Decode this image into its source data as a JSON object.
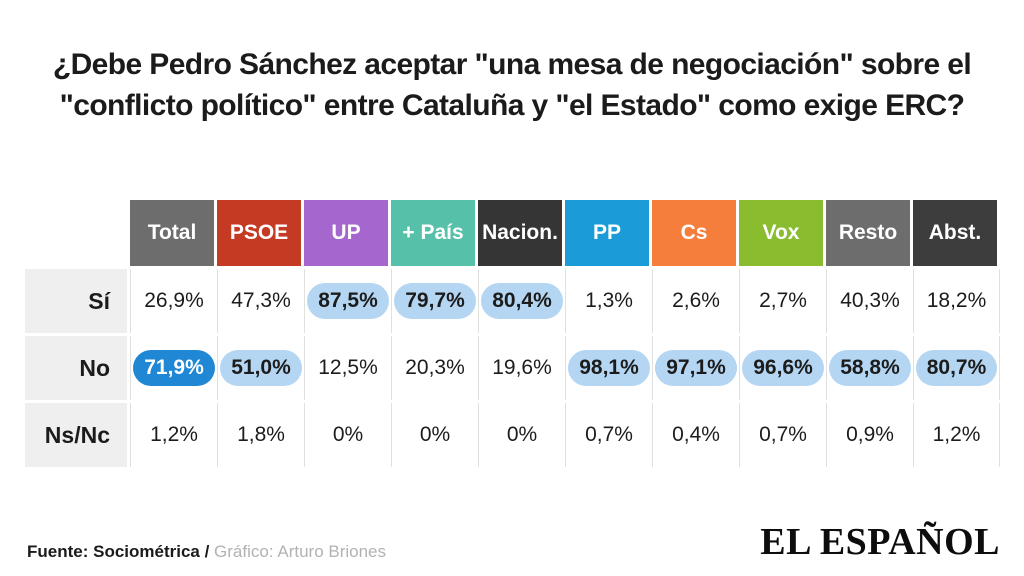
{
  "title": {
    "lines": [
      "¿Debe Pedro Sánchez aceptar \"una mesa de negociación\" sobre el",
      "\"conflicto político\" entre Cataluña y \"el Estado\" como exige ERC?"
    ]
  },
  "table": {
    "columns": [
      {
        "label": "Total",
        "color": "#6d6d6d"
      },
      {
        "label": "PSOE",
        "color": "#c43a22"
      },
      {
        "label": "UP",
        "color": "#a566ce"
      },
      {
        "label": "+ País",
        "color": "#57c0a9"
      },
      {
        "label": "Nacion.",
        "color": "#353535"
      },
      {
        "label": "PP",
        "color": "#1b9cd9"
      },
      {
        "label": "Cs",
        "color": "#f57e3c"
      },
      {
        "label": "Vox",
        "color": "#8abc2f"
      },
      {
        "label": "Resto",
        "color": "#6d6d6d"
      },
      {
        "label": "Abst.",
        "color": "#3d3d3d"
      }
    ],
    "rows": [
      {
        "label": "Sí",
        "cells": [
          {
            "value": "26,9%",
            "style": "plain"
          },
          {
            "value": "47,3%",
            "style": "plain"
          },
          {
            "value": "87,5%",
            "style": "pill"
          },
          {
            "value": "79,7%",
            "style": "pill"
          },
          {
            "value": "80,4%",
            "style": "pill"
          },
          {
            "value": "1,3%",
            "style": "plain"
          },
          {
            "value": "2,6%",
            "style": "plain"
          },
          {
            "value": "2,7%",
            "style": "plain"
          },
          {
            "value": "40,3%",
            "style": "plain"
          },
          {
            "value": "18,2%",
            "style": "plain"
          }
        ]
      },
      {
        "label": "No",
        "cells": [
          {
            "value": "71,9%",
            "style": "solid"
          },
          {
            "value": "51,0%",
            "style": "pill"
          },
          {
            "value": "12,5%",
            "style": "plain"
          },
          {
            "value": "20,3%",
            "style": "plain"
          },
          {
            "value": "19,6%",
            "style": "plain"
          },
          {
            "value": "98,1%",
            "style": "pill"
          },
          {
            "value": "97,1%",
            "style": "pill"
          },
          {
            "value": "96,6%",
            "style": "pill"
          },
          {
            "value": "58,8%",
            "style": "pill"
          },
          {
            "value": "80,7%",
            "style": "pill"
          }
        ]
      },
      {
        "label": "Ns/Nc",
        "cells": [
          {
            "value": "1,2%",
            "style": "plain"
          },
          {
            "value": "1,8%",
            "style": "plain"
          },
          {
            "value": "0%",
            "style": "plain"
          },
          {
            "value": "0%",
            "style": "plain"
          },
          {
            "value": "0%",
            "style": "plain"
          },
          {
            "value": "0,7%",
            "style": "plain"
          },
          {
            "value": "0,4%",
            "style": "plain"
          },
          {
            "value": "0,7%",
            "style": "plain"
          },
          {
            "value": "0,9%",
            "style": "plain"
          },
          {
            "value": "1,2%",
            "style": "plain"
          }
        ]
      }
    ]
  },
  "highlight_colors": {
    "pill_bg": "#b4d6f2",
    "pill_solid_bg": "#1f87d4",
    "pill_solid_text": "#ffffff"
  },
  "footer": {
    "source": "Fuente: Sociométrica /",
    "credit": " Gráfico: Arturo Briones",
    "brand": "EL ESPAÑOL"
  },
  "chart_data": {
    "type": "table",
    "title": "¿Debe Pedro Sánchez aceptar \"una mesa de negociación\" sobre el \"conflicto político\" entre Cataluña y \"el Estado\" como exige ERC?",
    "categories": [
      "Total",
      "PSOE",
      "UP",
      "+ País",
      "Nacion.",
      "PP",
      "Cs",
      "Vox",
      "Resto",
      "Abst."
    ],
    "series": [
      {
        "name": "Sí",
        "values": [
          26.9,
          47.3,
          87.5,
          79.7,
          80.4,
          1.3,
          2.6,
          2.7,
          40.3,
          18.2
        ],
        "highlighted": [
          false,
          false,
          true,
          true,
          true,
          false,
          false,
          false,
          false,
          false
        ]
      },
      {
        "name": "No",
        "values": [
          71.9,
          51.0,
          12.5,
          20.3,
          19.6,
          98.1,
          97.1,
          96.6,
          58.8,
          80.7
        ],
        "highlighted": [
          true,
          true,
          false,
          false,
          false,
          true,
          true,
          true,
          true,
          true
        ]
      },
      {
        "name": "Ns/Nc",
        "values": [
          1.2,
          1.8,
          0,
          0,
          0,
          0.7,
          0.4,
          0.7,
          0.9,
          1.2
        ],
        "highlighted": [
          false,
          false,
          false,
          false,
          false,
          false,
          false,
          false,
          false,
          false
        ]
      }
    ],
    "value_format": "percent, comma decimal separator",
    "source": "Sociométrica",
    "credit": "Arturo Briones"
  }
}
